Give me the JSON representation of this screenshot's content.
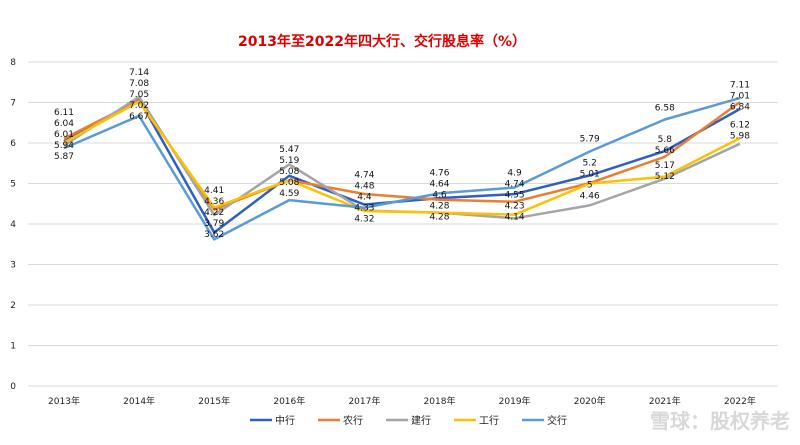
{
  "chart_data": {
    "type": "line",
    "title": "2013年至2022年四大行、交行股息率（%）",
    "categories": [
      "2013年",
      "2014年",
      "2015年",
      "2016年",
      "2017年",
      "2018年",
      "2019年",
      "2020年",
      "2021年",
      "2022年"
    ],
    "ylim": [
      0,
      8
    ],
    "yticks": [
      0,
      1,
      2,
      3,
      4,
      5,
      6,
      7,
      8
    ],
    "grid": true,
    "legend": "bottom",
    "series": [
      {
        "name": "中行",
        "color": "#2e5fc4",
        "values": [
          6.04,
          7.08,
          3.79,
          5.19,
          4.48,
          4.64,
          4.74,
          5.2,
          5.8,
          6.84
        ]
      },
      {
        "name": "农行",
        "color": "#ed7d31",
        "values": [
          6.11,
          7.05,
          4.36,
          5.08,
          4.74,
          4.6,
          4.55,
          5.01,
          5.66,
          7.01
        ]
      },
      {
        "name": "建行",
        "color": "#a5a5a5",
        "values": [
          5.94,
          7.14,
          4.22,
          5.47,
          4.33,
          4.28,
          4.14,
          4.46,
          5.12,
          5.98
        ]
      },
      {
        "name": "工行",
        "color": "#ffc000",
        "values": [
          6.01,
          7.02,
          4.41,
          5.08,
          4.32,
          4.28,
          4.23,
          5.0,
          5.17,
          6.12
        ]
      },
      {
        "name": "交行",
        "color": "#5b9bd5",
        "values": [
          5.87,
          6.67,
          3.62,
          4.59,
          4.4,
          4.76,
          4.9,
          5.79,
          6.58,
          7.11
        ]
      }
    ]
  },
  "watermark": "雪球：股权养老"
}
